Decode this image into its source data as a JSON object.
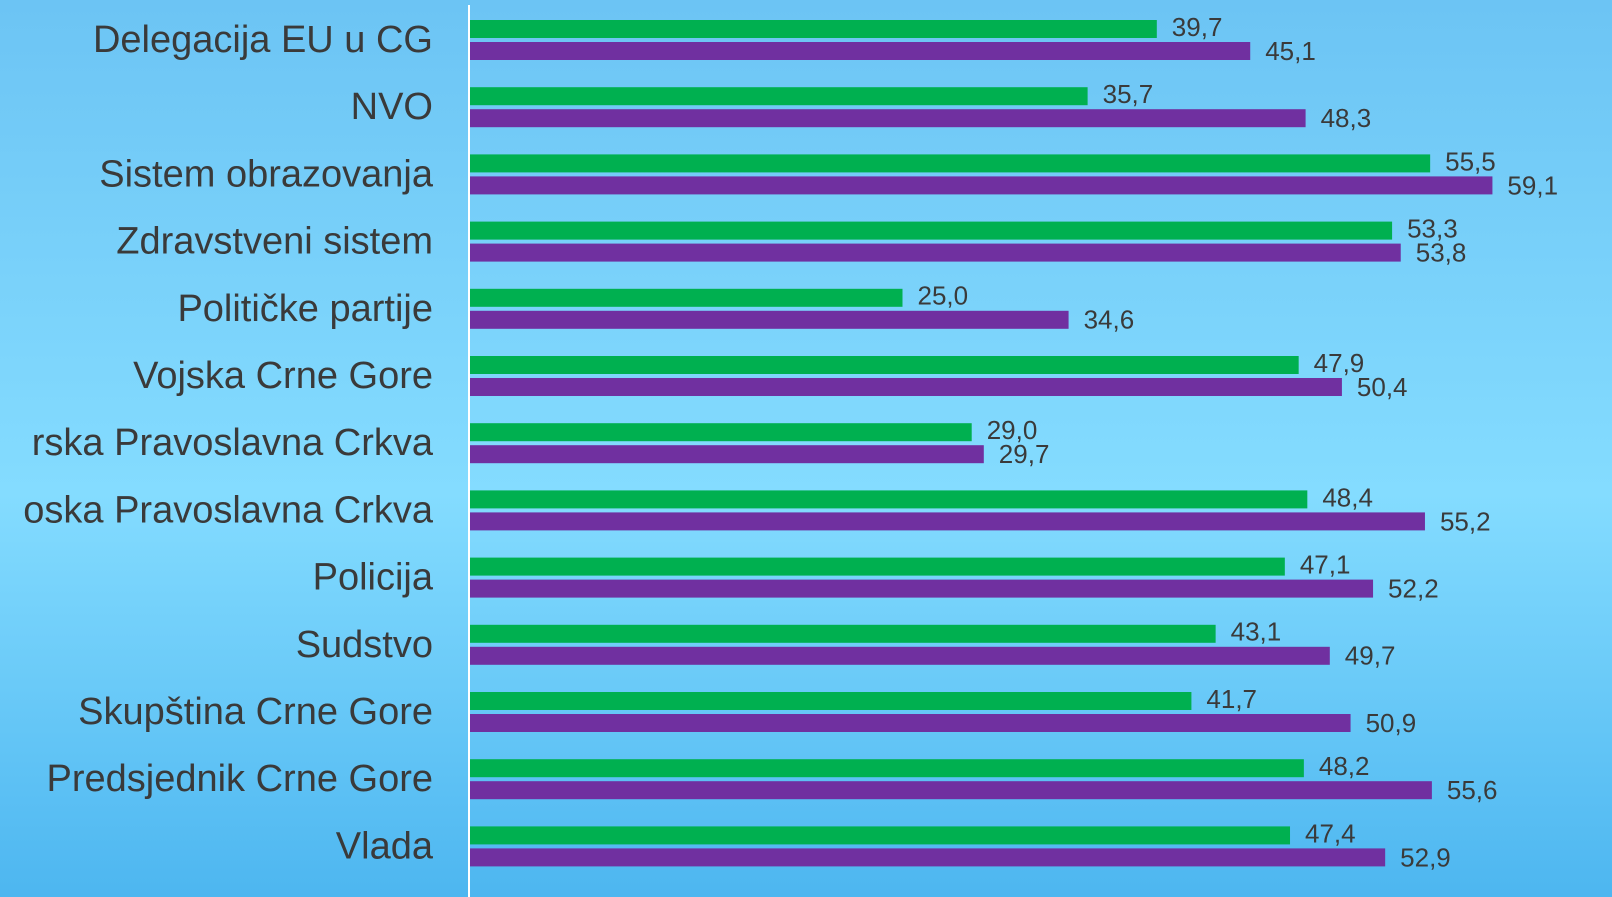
{
  "chart_data": {
    "type": "hbar",
    "categories": [
      "Delegacija EU u CG",
      "NVO",
      "Sistem obrazovanja",
      "Zdravstveni sistem",
      "Političke partije",
      "Vojska Crne Gore",
      "rska Pravoslavna Crkva",
      "oska Pravoslavna Crkva",
      "Policija",
      "Sudstvo",
      "Skupština Crne Gore",
      "Predsjednik Crne Gore",
      "Vlada"
    ],
    "series": [
      {
        "color": "#00b050",
        "values": [
          39.7,
          35.7,
          55.5,
          53.3,
          25.0,
          47.9,
          29.0,
          48.4,
          47.1,
          43.1,
          41.7,
          48.2,
          47.4
        ],
        "value_labels": [
          "39,7",
          "35,7",
          "55,5",
          "53,3",
          "25,0",
          "47,9",
          "29,0",
          "48,4",
          "47,1",
          "43,1",
          "41,7",
          "48,2",
          "47,4"
        ]
      },
      {
        "color": "#7030a0",
        "values": [
          45.1,
          48.3,
          59.1,
          53.8,
          34.6,
          50.4,
          29.7,
          55.2,
          52.2,
          49.7,
          50.9,
          55.6,
          52.9
        ],
        "value_labels": [
          "45,1",
          "48,3",
          "59,1",
          "53,8",
          "34,6",
          "50,4",
          "29,7",
          "55,2",
          "52,2",
          "49,7",
          "50,9",
          "55,6",
          "52,9"
        ]
      }
    ],
    "xlim": [
      0,
      60
    ]
  }
}
